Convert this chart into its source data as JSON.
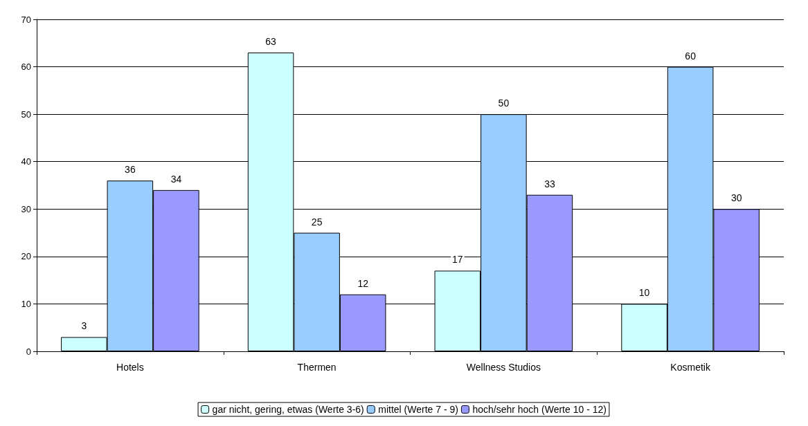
{
  "chart_data": {
    "type": "bar",
    "categories": [
      "Hotels",
      "Thermen",
      "Wellness Studios",
      "Kosmetik"
    ],
    "series": [
      {
        "name": "gar nicht, gering, etwas (Werte 3-6)",
        "color": "#ccffff",
        "values": [
          3,
          63,
          17,
          10
        ]
      },
      {
        "name": "mittel (Werte 7 - 9)",
        "color": "#99ccff",
        "values": [
          36,
          25,
          50,
          60
        ]
      },
      {
        "name": "hoch/sehr hoch (Werte 10 - 12)",
        "color": "#9999ff",
        "values": [
          34,
          12,
          33,
          30
        ]
      }
    ],
    "ylim": [
      0,
      70
    ],
    "yticks": [
      0,
      10,
      20,
      30,
      40,
      50,
      60,
      70
    ],
    "grid": "y",
    "legend": "bottom",
    "data_labels": true
  }
}
